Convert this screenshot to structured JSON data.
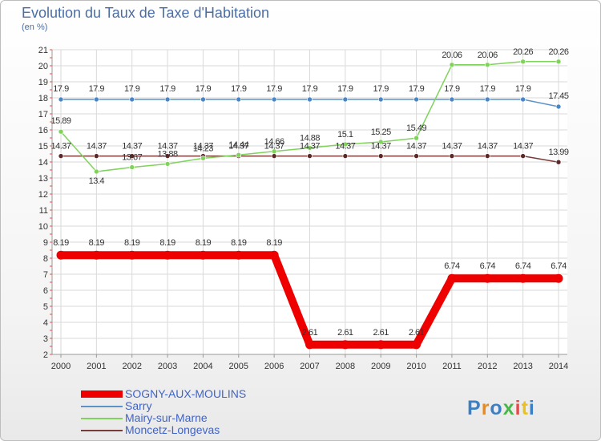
{
  "title": "Evolution du Taux de Taxe d'Habitation",
  "unit_label": "(en %)",
  "logo": {
    "text": "Proxiti"
  },
  "chart_data": {
    "type": "line",
    "title": "Evolution du Taux de Taxe d'Habitation",
    "ylabel": "(en %)",
    "xlabel": "",
    "x": [
      2000,
      2001,
      2002,
      2003,
      2004,
      2005,
      2006,
      2007,
      2008,
      2009,
      2010,
      2011,
      2012,
      2013,
      2014
    ],
    "ylim": [
      2,
      21
    ],
    "yticks": [
      2,
      3,
      4,
      5,
      6,
      7,
      8,
      9,
      10,
      11,
      12,
      13,
      14,
      15,
      16,
      17,
      18,
      19,
      20,
      21
    ],
    "grid": true,
    "legend_position": "bottom-left",
    "series": [
      {
        "name": "SOGNY-AUX-MOULINS",
        "color": "#ee0000",
        "values": [
          8.19,
          8.19,
          8.19,
          8.19,
          8.19,
          8.19,
          8.19,
          2.61,
          2.61,
          2.61,
          2.61,
          6.74,
          6.74,
          6.74,
          6.74
        ],
        "labels": [
          "8.19",
          "8.19",
          "8.19",
          "8.19",
          "8.19",
          "8.19",
          "8.19",
          "2.61",
          "2.61",
          "2.61",
          "2.61",
          "6.74",
          "6.74",
          "6.74",
          "6.74"
        ]
      },
      {
        "name": "Sarry",
        "color": "#5b93c9",
        "values": [
          17.9,
          17.9,
          17.9,
          17.9,
          17.9,
          17.9,
          17.9,
          17.9,
          17.9,
          17.9,
          17.9,
          17.9,
          17.9,
          17.9,
          17.45
        ],
        "labels": [
          "17.9",
          "17.9",
          "17.9",
          "17.9",
          "17.9",
          "17.9",
          "17.9",
          "17.9",
          "17.9",
          "17.9",
          "17.9",
          "17.9",
          "17.9",
          "17.9",
          "17.45"
        ]
      },
      {
        "name": "Mairy-sur-Marne",
        "color": "#7fd35a",
        "values": [
          15.89,
          13.4,
          13.67,
          13.88,
          14.23,
          14.44,
          14.66,
          14.88,
          15.1,
          15.25,
          15.49,
          20.06,
          20.06,
          20.26,
          20.26
        ],
        "labels": [
          "15.89",
          "13.4",
          "13.67",
          "13.88",
          "14.23",
          "14.44",
          "14.66",
          "14.88",
          "15.1",
          "15.25",
          "15.49",
          "20.06",
          "20.06",
          "20.26",
          "20.26"
        ]
      },
      {
        "name": "Moncetz-Longevas",
        "color": "#7a3b3b",
        "values": [
          14.37,
          14.37,
          14.37,
          14.37,
          14.37,
          14.37,
          14.37,
          14.37,
          14.37,
          14.37,
          14.37,
          14.37,
          14.37,
          14.37,
          13.99
        ],
        "labels": [
          "14.37",
          "14.37",
          "14.37",
          "14.37",
          "14.37",
          "14.37",
          "14.37",
          "14.37",
          "14.37",
          "14.37",
          "14.37",
          "14.37",
          "14.37",
          "14.37",
          "13.99"
        ]
      }
    ]
  }
}
